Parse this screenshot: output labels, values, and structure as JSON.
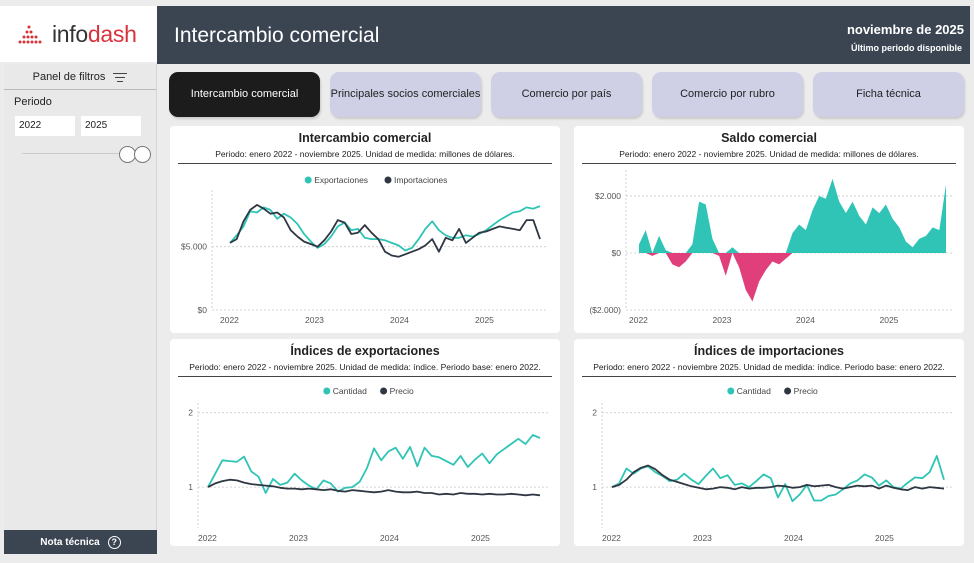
{
  "brand": {
    "logo_main": "info",
    "logo_accent": "dash",
    "accent_color": "#d9323a"
  },
  "header": {
    "title": "Intercambio comercial",
    "period": "noviembre de 2025",
    "period_note": "Último periodo disponible",
    "bg_color": "#3b4552"
  },
  "sidebar": {
    "filter_title": "Panel de filtros",
    "filter_icon": "filter-lines-icon",
    "periodo_label": "Periodo",
    "from_year": "2022",
    "to_year": "2025",
    "nota_label": "Nota técnica",
    "nota_icon": "question-circle-icon"
  },
  "tabs": [
    {
      "label": "Intercambio comercial",
      "active": true
    },
    {
      "label": "Principales socios comerciales",
      "active": false
    },
    {
      "label": "Comercio por país",
      "active": false
    },
    {
      "label": "Comercio por rubro",
      "active": false
    },
    {
      "label": "Ficha técnica",
      "active": false
    }
  ],
  "colors": {
    "teal": "#2fc4b5",
    "dark": "#2e3742",
    "pink": "#e03f7c",
    "grid": "#c8c8c8"
  },
  "cards": {
    "intercambio": {
      "title": "Intercambio comercial",
      "subtitle": "Periodo: enero 2022 - noviembre 2025. Unidad de medida: millones de dólares."
    },
    "saldo": {
      "title": "Saldo comercial",
      "subtitle": "Periodo: enero 2022 - noviembre 2025. Unidad de medida: millones de dólares."
    },
    "idx_export": {
      "title": "Índices de exportaciones",
      "subtitle": "Periodo: enero 2022 - noviembre 2025. Unidad de medida: índice. Periodo base: enero 2022."
    },
    "idx_import": {
      "title": "Índices de importaciones",
      "subtitle": "Periodo: enero 2022 - noviembre 2025. Unidad de medida: índice. Periodo base: enero 2022."
    }
  },
  "chart_data": [
    {
      "id": "intercambio",
      "type": "line",
      "x_start": "2022-01",
      "x_ticks": [
        "2022",
        "2023",
        "2024",
        "2025"
      ],
      "y_ticks": [
        "$0",
        "$5.000"
      ],
      "y_tick_values": [
        0,
        5000
      ],
      "ylim": [
        0,
        9000
      ],
      "legend": "top-center",
      "series": [
        {
          "name": "Exportaciones",
          "color": "#2fc4b5",
          "values": [
            5300,
            5900,
            6600,
            7800,
            7700,
            8100,
            7900,
            7200,
            7600,
            7300,
            6800,
            6000,
            5400,
            4900,
            5200,
            5800,
            6600,
            6900,
            6300,
            6400,
            5700,
            5600,
            5600,
            5500,
            5300,
            5100,
            4700,
            4900,
            5600,
            6400,
            7000,
            6300,
            5900,
            5700,
            5700,
            5900,
            5800,
            6000,
            6300,
            6700,
            7100,
            7400,
            7700,
            7800,
            8100,
            8000,
            8200
          ]
        },
        {
          "name": "Importaciones",
          "color": "#2e3742",
          "values": [
            5300,
            5600,
            7000,
            7900,
            8300,
            8000,
            7600,
            7700,
            7300,
            6300,
            5800,
            5400,
            5200,
            5000,
            5500,
            6200,
            7100,
            6900,
            6000,
            6100,
            6700,
            6100,
            5600,
            4600,
            4300,
            4200,
            4400,
            4600,
            4800,
            5100,
            5600,
            4600,
            5700,
            5500,
            6400,
            5300,
            5700,
            6100,
            6200,
            6400,
            6600,
            6500,
            6400,
            6300,
            7100,
            7100,
            5600
          ]
        }
      ]
    },
    {
      "id": "saldo",
      "type": "area",
      "x_start": "2022-01",
      "x_ticks": [
        "2022",
        "2023",
        "2024",
        "2025"
      ],
      "y_ticks": [
        "($2.000)",
        "$0",
        "$2.000"
      ],
      "y_tick_values": [
        -2000,
        0,
        2000
      ],
      "ylim": [
        -2000,
        2700
      ],
      "positive_color": "#2fc4b5",
      "negative_color": "#e03f7c",
      "values": [
        300,
        800,
        -100,
        600,
        100,
        -400,
        -500,
        -300,
        300,
        1800,
        1700,
        500,
        -100,
        -800,
        200,
        -500,
        -1300,
        -1700,
        -1000,
        -600,
        -300,
        -400,
        -200,
        700,
        1000,
        800,
        1500,
        2000,
        1900,
        2600,
        1800,
        1400,
        1800,
        1300,
        1000,
        1600,
        1400,
        1700,
        1200,
        900,
        400,
        200,
        500,
        600,
        900,
        800,
        2400
      ]
    },
    {
      "id": "idx_export",
      "type": "line",
      "x_start": "2022-01",
      "x_ticks": [
        "2022",
        "2023",
        "2024",
        "2025"
      ],
      "y_ticks": [
        "1",
        "2"
      ],
      "y_tick_values": [
        1,
        2
      ],
      "ylim": [
        0.45,
        2.05
      ],
      "legend": "top-center",
      "series": [
        {
          "name": "Cantidad",
          "color": "#2fc4b5",
          "values": [
            1.0,
            1.18,
            1.36,
            1.35,
            1.34,
            1.41,
            1.21,
            1.14,
            0.92,
            1.11,
            1.03,
            1.06,
            1.18,
            1.09,
            1.02,
            0.97,
            1.09,
            1.05,
            0.94,
            0.99,
            1.0,
            1.07,
            1.25,
            1.52,
            1.36,
            1.48,
            1.53,
            1.38,
            1.54,
            1.28,
            1.53,
            1.42,
            1.4,
            1.35,
            1.3,
            1.42,
            1.27,
            1.37,
            1.45,
            1.32,
            1.44,
            1.51,
            1.58,
            1.65,
            1.58,
            1.7,
            1.66
          ]
        },
        {
          "name": "Precio",
          "color": "#2e3742",
          "values": [
            1.0,
            1.05,
            1.08,
            1.1,
            1.09,
            1.06,
            1.04,
            1.03,
            1.02,
            1.01,
            0.99,
            0.98,
            0.98,
            0.97,
            0.98,
            0.97,
            0.96,
            0.97,
            0.95,
            0.94,
            0.96,
            0.95,
            0.94,
            0.93,
            0.94,
            0.96,
            0.94,
            0.93,
            0.93,
            0.94,
            0.92,
            0.92,
            0.9,
            0.91,
            0.9,
            0.92,
            0.91,
            0.91,
            0.9,
            0.91,
            0.9,
            0.9,
            0.91,
            0.9,
            0.89,
            0.9,
            0.89
          ]
        }
      ]
    },
    {
      "id": "idx_import",
      "type": "line",
      "x_start": "2022-01",
      "x_ticks": [
        "2022",
        "2023",
        "2024",
        "2025"
      ],
      "y_ticks": [
        "1",
        "2"
      ],
      "y_tick_values": [
        1,
        2
      ],
      "ylim": [
        0.45,
        2.05
      ],
      "legend": "top-center",
      "series": [
        {
          "name": "Cantidad",
          "color": "#2fc4b5",
          "values": [
            1.0,
            1.05,
            1.25,
            1.18,
            1.25,
            1.28,
            1.2,
            1.15,
            1.08,
            1.1,
            1.18,
            1.1,
            1.04,
            1.15,
            1.25,
            1.12,
            1.16,
            1.03,
            1.05,
            1.0,
            1.08,
            1.17,
            1.12,
            0.86,
            1.04,
            0.81,
            0.9,
            1.03,
            0.82,
            0.82,
            0.88,
            0.9,
            0.97,
            1.05,
            1.09,
            1.17,
            1.13,
            1.02,
            1.09,
            1.0,
            0.98,
            1.06,
            1.13,
            1.12,
            1.2,
            1.42,
            1.1
          ]
        },
        {
          "name": "Precio",
          "color": "#2e3742",
          "values": [
            1.0,
            1.03,
            1.1,
            1.2,
            1.26,
            1.29,
            1.24,
            1.16,
            1.1,
            1.07,
            1.04,
            1.01,
            0.99,
            0.97,
            0.98,
            1.0,
            0.99,
            0.97,
            1.0,
            0.98,
            0.99,
            0.99,
            1.0,
            1.02,
            1.01,
            0.99,
            1.0,
            1.03,
            1.01,
            1.02,
            1.03,
            1.0,
            0.98,
            1.0,
            1.02,
            1.01,
            1.02,
            0.98,
            1.02,
            0.99,
            0.97,
            0.96,
            1.0,
            0.98,
            1.0,
            0.99,
            0.98
          ]
        }
      ]
    }
  ]
}
